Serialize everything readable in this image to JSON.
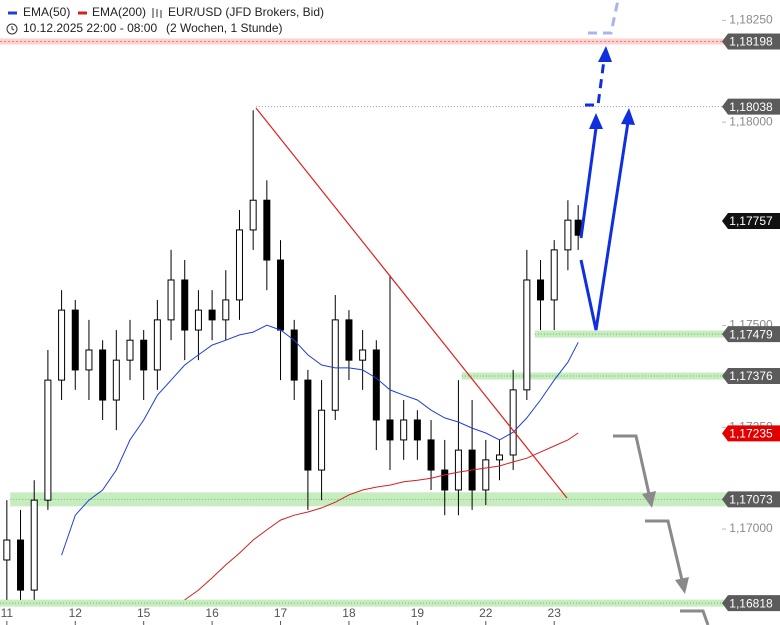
{
  "chart_data": {
    "type": "candlestick",
    "instrument": "EUR/USD (JFD Brokers, Bid)",
    "timerange": "10.12.2025 22:00 - 08:00",
    "period": "(2 Wochen, 1 Stunde)",
    "candle_color": "#000000",
    "x": [
      0,
      0.2,
      0.4,
      0.6,
      0.8,
      1.0,
      1.2,
      1.4,
      1.6,
      1.8,
      2.0,
      2.2,
      2.4,
      2.6,
      2.8,
      3.0,
      3.2,
      3.4,
      3.6,
      3.8,
      4.0,
      4.2,
      4.4,
      4.6,
      4.8,
      5.0,
      5.2,
      5.4,
      5.6,
      5.8,
      6.0,
      6.2,
      6.4,
      6.6,
      6.8,
      7.0,
      7.2,
      7.4,
      7.6,
      7.8,
      8.0,
      8.2,
      8.35
    ],
    "open": [
      1.16924,
      1.16973,
      1.1685,
      1.17071,
      1.17366,
      1.17538,
      1.17391,
      1.1744,
      1.17317,
      1.17415,
      1.17464,
      1.17391,
      1.17514,
      1.17612,
      1.17489,
      1.17538,
      1.17514,
      1.17563,
      1.17735,
      1.17808,
      1.17661,
      1.17489,
      1.17366,
      1.17145,
      1.17292,
      1.17514,
      1.17415,
      1.1744,
      1.17268,
      1.17219,
      1.17268,
      1.17219,
      1.17145,
      1.17096,
      1.17194,
      1.17096,
      1.1717,
      1.17182,
      1.17342,
      1.17612,
      1.17563,
      1.17686,
      1.17759
    ],
    "high": [
      1.17071,
      1.17047,
      1.1712,
      1.1744,
      1.17587,
      1.17563,
      1.17514,
      1.17464,
      1.17489,
      1.17514,
      1.17489,
      1.17563,
      1.17686,
      1.17661,
      1.17587,
      1.17587,
      1.17636,
      1.17784,
      1.18029,
      1.17857,
      1.1771,
      1.17514,
      1.17391,
      1.17366,
      1.17575,
      1.17538,
      1.17489,
      1.17464,
      1.17624,
      1.17317,
      1.17292,
      1.17268,
      1.17219,
      1.17366,
      1.17317,
      1.17219,
      1.17219,
      1.17391,
      1.17686,
      1.17661,
      1.1771,
      1.17808,
      1.17796
    ],
    "low": [
      1.16826,
      1.16826,
      1.16826,
      1.17047,
      1.17317,
      1.17342,
      1.17317,
      1.17268,
      1.17243,
      1.17366,
      1.17317,
      1.17342,
      1.17464,
      1.17415,
      1.17415,
      1.17464,
      1.17464,
      1.17514,
      1.17686,
      1.17587,
      1.17366,
      1.17317,
      1.17047,
      1.17071,
      1.17268,
      1.17366,
      1.17342,
      1.17194,
      1.17145,
      1.1717,
      1.1717,
      1.17096,
      1.17034,
      1.17034,
      1.17047,
      1.17059,
      1.1712,
      1.17145,
      1.17317,
      1.17489,
      1.17489,
      1.17636,
      1.17686
    ],
    "close": [
      1.16973,
      1.1685,
      1.17071,
      1.17366,
      1.17538,
      1.17391,
      1.1744,
      1.17317,
      1.17415,
      1.17464,
      1.17391,
      1.17514,
      1.17612,
      1.17489,
      1.17538,
      1.17514,
      1.17563,
      1.17735,
      1.17808,
      1.17661,
      1.17489,
      1.17366,
      1.17145,
      1.17292,
      1.17514,
      1.17415,
      1.1744,
      1.17268,
      1.17219,
      1.17268,
      1.17219,
      1.17145,
      1.17096,
      1.17194,
      1.17096,
      1.1717,
      1.17182,
      1.17342,
      1.17612,
      1.17563,
      1.17686,
      1.17759,
      1.17722
    ],
    "series": [
      {
        "name": "EMA(50)",
        "color": "#1f3fd6",
        "values": [
          null,
          null,
          null,
          null,
          1.16936,
          1.17034,
          1.17071,
          1.17096,
          1.17145,
          1.17219,
          1.17268,
          1.17329,
          1.17366,
          1.17403,
          1.17428,
          1.17452,
          1.17464,
          1.17477,
          1.17484,
          1.17501,
          1.17489,
          1.17464,
          1.17428,
          1.17403,
          1.17396,
          1.17396,
          1.17391,
          1.17371,
          1.17342,
          1.17329,
          1.17317,
          1.17292,
          1.17273,
          1.17263,
          1.17248,
          1.17236,
          1.17219,
          1.17238,
          1.17273,
          1.17317,
          1.17366,
          1.1741,
          1.17459
        ]
      },
      {
        "name": "EMA(200)",
        "color": "#d42020",
        "values": [
          null,
          null,
          null,
          null,
          null,
          null,
          null,
          null,
          null,
          null,
          null,
          null,
          null,
          1.16826,
          1.1685,
          1.1688,
          1.16912,
          1.16941,
          1.16973,
          1.16998,
          1.17022,
          1.17034,
          1.17042,
          1.17052,
          1.17066,
          1.17084,
          1.17096,
          1.17103,
          1.17108,
          1.17116,
          1.1712,
          1.17125,
          1.17133,
          1.1714,
          1.17145,
          1.1715,
          1.17155,
          1.17165,
          1.17174,
          1.17189,
          1.17204,
          1.17219,
          1.17236
        ]
      }
    ],
    "levels": [
      {
        "value": 1.18198,
        "label": "1,18198",
        "tag_color": "#5b5b5b",
        "line": "band",
        "from_x": -0.1
      },
      {
        "value": 1.18038,
        "label": "1,18038",
        "tag_color": "#5b5b5b",
        "line": "dotted",
        "from_x": 3.64
      },
      {
        "value": 1.17757,
        "label": "1,17757",
        "tag_color": "#111111",
        "line": null,
        "from_x": null
      },
      {
        "value": 1.17479,
        "label": "1,17479",
        "tag_color": "#5b5b5b",
        "line": "zone",
        "from_x": 7.72
      },
      {
        "value": 1.17376,
        "label": "1,17376",
        "tag_color": "#5b5b5b",
        "line": "zone",
        "from_x": 6.65
      },
      {
        "value": 1.17235,
        "label": "1,17235",
        "tag_color": "#e00000",
        "line": null,
        "from_x": null
      },
      {
        "value": 1.17073,
        "label": "1,17073",
        "tag_color": "#5b5b5b",
        "line": "wide-zone",
        "from_x": 0.05
      },
      {
        "value": 1.16818,
        "label": "1,16818",
        "tag_color": "#5b5b5b",
        "line": "zone",
        "from_x": -0.1
      }
    ],
    "xlim": [
      -0.1,
      11.3
    ],
    "ylim": [
      1.16806,
      1.183
    ],
    "xticks": [
      {
        "value": 0,
        "label": "11"
      },
      {
        "value": 1,
        "label": "12"
      },
      {
        "value": 2,
        "label": "15"
      },
      {
        "value": 3,
        "label": "16"
      },
      {
        "value": 4,
        "label": "17"
      },
      {
        "value": 5,
        "label": "18"
      },
      {
        "value": 6,
        "label": "19"
      },
      {
        "value": 7,
        "label": "22"
      },
      {
        "value": 8,
        "label": "23"
      }
    ],
    "yticks": [
      {
        "value": 1.1825,
        "label": "1,18250"
      },
      {
        "value": 1.18,
        "label": "1,18000"
      },
      {
        "value": 1.175,
        "label": "1,17500"
      },
      {
        "value": 1.1725,
        "label": "1,17250"
      },
      {
        "value": 1.17,
        "label": "1,17000"
      }
    ]
  }
}
